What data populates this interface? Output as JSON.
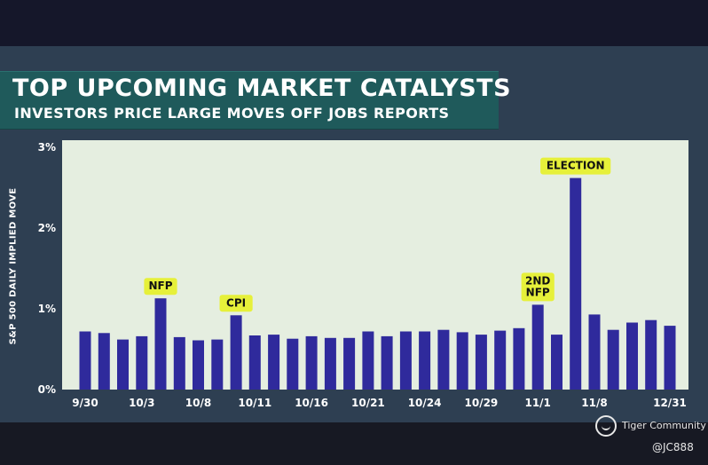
{
  "header": {
    "title": "TOP UPCOMING MARKET CATALYSTS",
    "subtitle": "INVESTORS PRICE LARGE MOVES OFF JOBS REPORTS"
  },
  "chart_data": {
    "type": "bar",
    "title": "TOP UPCOMING MARKET CATALYSTS",
    "subtitle": "INVESTORS PRICE LARGE MOVES OFF JOBS REPORTS",
    "ylabel": "S&P 500 DAILY IMPLIED MOVE",
    "xlabel": "",
    "ylim": [
      0,
      3
    ],
    "yticks": [
      0,
      1,
      2,
      3
    ],
    "ytick_labels": [
      "0%",
      "1%",
      "2%",
      "3%"
    ],
    "grid": false,
    "values": [
      0.72,
      0.7,
      0.62,
      0.66,
      1.13,
      0.65,
      0.61,
      0.62,
      0.92,
      0.67,
      0.68,
      0.63,
      0.66,
      0.64,
      0.64,
      0.72,
      0.66,
      0.72,
      0.72,
      0.74,
      0.71,
      0.68,
      0.73,
      0.76,
      1.05,
      0.68,
      2.62,
      0.93,
      0.74,
      0.83,
      0.86,
      0.79
    ],
    "xtick_labels": [
      {
        "label": "9/30",
        "bar": 0
      },
      {
        "label": "10/3",
        "bar": 3
      },
      {
        "label": "10/8",
        "bar": 6
      },
      {
        "label": "10/11",
        "bar": 9
      },
      {
        "label": "10/16",
        "bar": 12
      },
      {
        "label": "10/21",
        "bar": 15
      },
      {
        "label": "10/24",
        "bar": 18
      },
      {
        "label": "10/29",
        "bar": 21
      },
      {
        "label": "11/1",
        "bar": 24
      },
      {
        "label": "11/8",
        "bar": 27
      },
      {
        "label": "12/31",
        "bar": 31
      }
    ],
    "annotations": [
      {
        "bar": 4,
        "lines": [
          "NFP"
        ]
      },
      {
        "bar": 8,
        "lines": [
          "CPI"
        ]
      },
      {
        "bar": 24,
        "lines": [
          "2ND",
          "NFP"
        ]
      },
      {
        "bar": 26,
        "lines": [
          "ELECTION"
        ]
      }
    ]
  },
  "watermark": {
    "brand": "Tiger Community",
    "handle": "@JC888"
  },
  "colors": {
    "bar": "#2f2a9c",
    "plot_bg": "#e5eee0",
    "banner": "#1f5a5b",
    "annotation": "#e6f03a"
  }
}
